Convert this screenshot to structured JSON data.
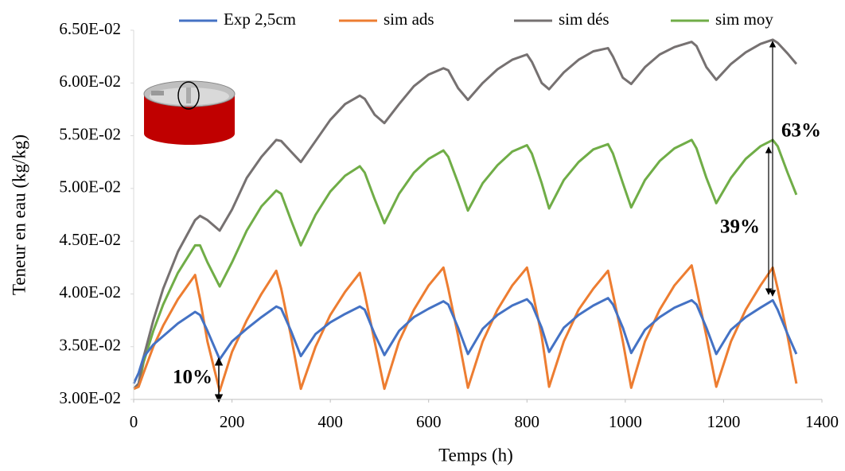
{
  "chart_data": {
    "type": "line",
    "xlabel": "Temps (h)",
    "ylabel": "Teneur en eau (kg/kg)",
    "x": [
      0,
      10,
      20,
      40,
      60,
      90,
      125,
      135,
      150,
      175,
      200,
      230,
      260,
      290,
      300,
      320,
      340,
      370,
      400,
      430,
      460,
      470,
      490,
      510,
      540,
      570,
      600,
      630,
      640,
      660,
      680,
      710,
      740,
      770,
      800,
      810,
      830,
      845,
      875,
      905,
      935,
      965,
      975,
      995,
      1012,
      1040,
      1070,
      1100,
      1135,
      1145,
      1165,
      1185,
      1215,
      1245,
      1275,
      1300,
      1310,
      1330,
      1348
    ],
    "series": [
      {
        "name": "Exp 2,5cm",
        "color": "#4472c4",
        "values": [
          0.0315,
          0.0325,
          0.034,
          0.0352,
          0.036,
          0.0372,
          0.0383,
          0.038,
          0.0365,
          0.0338,
          0.0355,
          0.0367,
          0.0378,
          0.0388,
          0.0386,
          0.0365,
          0.0341,
          0.0362,
          0.0373,
          0.0381,
          0.0388,
          0.0385,
          0.0362,
          0.0342,
          0.0365,
          0.0378,
          0.0386,
          0.0393,
          0.039,
          0.0368,
          0.0343,
          0.0367,
          0.038,
          0.0389,
          0.0395,
          0.039,
          0.0368,
          0.0345,
          0.0368,
          0.038,
          0.0389,
          0.0396,
          0.039,
          0.0368,
          0.0344,
          0.0366,
          0.0378,
          0.0387,
          0.0394,
          0.039,
          0.0368,
          0.0343,
          0.0366,
          0.0378,
          0.0387,
          0.0394,
          0.0385,
          0.0362,
          0.0343
        ]
      },
      {
        "name": "sim ads",
        "color": "#ed7d31",
        "values": [
          0.031,
          0.0312,
          0.0325,
          0.035,
          0.037,
          0.0395,
          0.0418,
          0.0395,
          0.0355,
          0.0308,
          0.0345,
          0.0375,
          0.04,
          0.0422,
          0.0405,
          0.036,
          0.031,
          0.035,
          0.038,
          0.0402,
          0.042,
          0.04,
          0.0355,
          0.031,
          0.0355,
          0.0385,
          0.0408,
          0.0425,
          0.0405,
          0.036,
          0.0311,
          0.0355,
          0.0385,
          0.0408,
          0.0425,
          0.0405,
          0.036,
          0.0312,
          0.0355,
          0.0385,
          0.0405,
          0.0422,
          0.04,
          0.0355,
          0.0311,
          0.0355,
          0.0385,
          0.0408,
          0.0427,
          0.0405,
          0.036,
          0.0312,
          0.0355,
          0.0385,
          0.0408,
          0.0425,
          0.0405,
          0.036,
          0.0315
        ]
      },
      {
        "name": "sim dés",
        "color": "#767171",
        "values": [
          0.031,
          0.0315,
          0.034,
          0.0375,
          0.0405,
          0.044,
          0.047,
          0.0474,
          0.047,
          0.046,
          0.048,
          0.051,
          0.053,
          0.0546,
          0.0545,
          0.0535,
          0.0525,
          0.0545,
          0.0565,
          0.058,
          0.0588,
          0.0585,
          0.057,
          0.0562,
          0.058,
          0.0597,
          0.0608,
          0.0614,
          0.0612,
          0.0595,
          0.0584,
          0.06,
          0.0613,
          0.0622,
          0.0627,
          0.062,
          0.06,
          0.0594,
          0.061,
          0.0622,
          0.063,
          0.0633,
          0.0625,
          0.0605,
          0.0599,
          0.0615,
          0.0627,
          0.0634,
          0.0639,
          0.0635,
          0.0615,
          0.0603,
          0.0618,
          0.0629,
          0.0637,
          0.0641,
          0.0638,
          0.0628,
          0.0618
        ]
      },
      {
        "name": "sim moy",
        "color": "#70ad47",
        "values": [
          0.031,
          0.0312,
          0.0335,
          0.0365,
          0.039,
          0.042,
          0.0446,
          0.0446,
          0.043,
          0.0407,
          0.043,
          0.046,
          0.0483,
          0.0498,
          0.0495,
          0.047,
          0.0446,
          0.0475,
          0.0497,
          0.0512,
          0.0521,
          0.0515,
          0.049,
          0.0467,
          0.0495,
          0.0515,
          0.0528,
          0.0536,
          0.053,
          0.0505,
          0.0479,
          0.0505,
          0.0522,
          0.0535,
          0.0541,
          0.0533,
          0.0505,
          0.0481,
          0.0508,
          0.0525,
          0.0537,
          0.0542,
          0.0533,
          0.0505,
          0.0482,
          0.0508,
          0.0526,
          0.0538,
          0.0546,
          0.0538,
          0.051,
          0.0486,
          0.051,
          0.0528,
          0.054,
          0.0546,
          0.054,
          0.0515,
          0.0494
        ]
      }
    ],
    "xlim": [
      0,
      1400
    ],
    "xticks": [
      0,
      200,
      400,
      600,
      800,
      1000,
      1200,
      1400
    ],
    "ylim": [
      0.03,
      0.065
    ],
    "yticks": [
      {
        "value": 0.03,
        "label": "3.00E-02"
      },
      {
        "value": 0.035,
        "label": "3.50E-02"
      },
      {
        "value": 0.04,
        "label": "4.00E-02"
      },
      {
        "value": 0.045,
        "label": "4.50E-02"
      },
      {
        "value": 0.05,
        "label": "5.00E-02"
      },
      {
        "value": 0.055,
        "label": "5.50E-02"
      },
      {
        "value": 0.06,
        "label": "6.00E-02"
      },
      {
        "value": 0.065,
        "label": "6.50E-02"
      }
    ],
    "grid": false,
    "legend": "top",
    "annotations": [
      "10%",
      "39%",
      "63%"
    ]
  }
}
